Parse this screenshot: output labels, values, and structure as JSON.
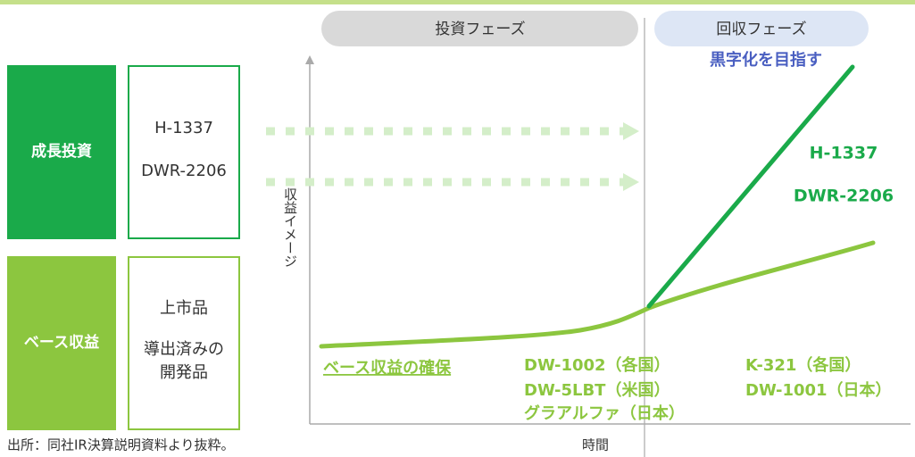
{
  "phases": {
    "invest": "投資フェーズ",
    "recover": "回収フェーズ"
  },
  "goal": "黒字化を目指す",
  "left": {
    "growth": {
      "title": "成長投資",
      "items": [
        "H-1337",
        "DWR-2206"
      ]
    },
    "base": {
      "title": "ベース収益",
      "items": [
        "上市品",
        "導出済みの",
        "開発品"
      ]
    }
  },
  "axis": {
    "y": "収益イメージ",
    "x": "時間"
  },
  "growth_labels": [
    "H-1337",
    "DWR-2206"
  ],
  "base_label": "ベース収益の確保",
  "invest_products": [
    "DW-1002（各国）",
    "DW-5LBT（米国）",
    "グラアルファ（日本）"
  ],
  "recover_products": [
    "K-321（各国）",
    "DW-1001（日本）"
  ],
  "source": "出所：同社IR決算説明資料より抜粋。"
}
